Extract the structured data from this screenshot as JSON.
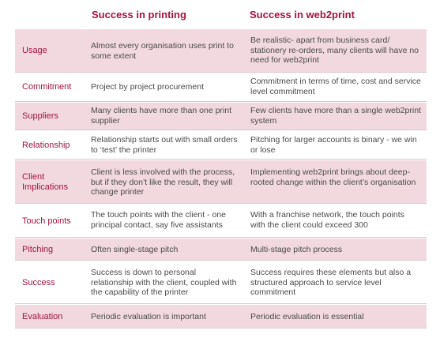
{
  "headers": {
    "printing": "Success in printing",
    "web2print": "Success in web2print"
  },
  "rows": [
    {
      "category": "Usage",
      "printing": "Almost every organisation uses print to some extent",
      "web2print": "Be realistic- apart from business card/ stationery re-orders, many clients will have no need for web2print"
    },
    {
      "category": "Commitment",
      "printing": "Project by project procurement",
      "web2print": "Commitment in terms of time, cost and service level commitment"
    },
    {
      "category": "Suppliers",
      "printing": "Many clients have more than one print supplier",
      "web2print": "Few clients have more than a single web2print system"
    },
    {
      "category": "Relationship",
      "printing": "Relationship starts out with small orders to ‘test’ the printer",
      "web2print": "Pitching for larger accounts is binary - we win or lose"
    },
    {
      "category": "Client Implications",
      "printing": "Client is less involved with the process, but if they don’t like the result, they will change printer",
      "web2print": "Implementing web2print brings about deep-rooted change within the client’s organisation"
    },
    {
      "category": "Touch points",
      "printing": "The touch points with the client - one principal contact, say five assistants",
      "web2print": "With a franchise network, the touch points with the client could exceed 300"
    },
    {
      "category": "Pitching",
      "printing": "Often single-stage pitch",
      "web2print": "Multi-stage pitch process"
    },
    {
      "category": "Success",
      "printing": "Success is down to personal relationship with the client, coupled with the capability of the printer",
      "web2print": "Success requires these elements but also a structured approach to service level commitment"
    },
    {
      "category": "Evaluation",
      "printing": "Periodic evaluation is important",
      "web2print": "Periodic evaluation is essential"
    }
  ]
}
